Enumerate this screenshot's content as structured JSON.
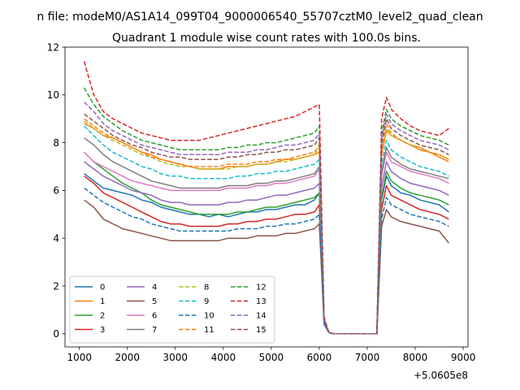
{
  "figure": {
    "suptitle": "n file: modeM0/AS1A14_099T04_9000006540_55707cztM0_level2_quad_clean",
    "title": "Quadrant 1 module wise count rates with 100.0s bins.",
    "offset_label": "+5.0605e8"
  },
  "chart_data": {
    "type": "line",
    "title": "Quadrant 1 module wise count rates with 100.0s bins.",
    "xlabel": "",
    "ylabel": "",
    "x_offset": 506050000,
    "xlim": [
      700,
      9100
    ],
    "ylim": [
      -0.55,
      12
    ],
    "xticks": [
      1000,
      2000,
      3000,
      4000,
      5000,
      6000,
      7000,
      8000,
      9000
    ],
    "yticks": [
      0,
      2,
      4,
      6,
      8,
      10,
      12
    ],
    "grid": false,
    "legend_position": "lower-left",
    "legend_columns": 4,
    "gap_range": [
      6200,
      7200
    ],
    "x": [
      1100,
      1300,
      1500,
      1700,
      1900,
      2100,
      2300,
      2500,
      2700,
      2900,
      3100,
      3300,
      3500,
      3700,
      3900,
      4100,
      4300,
      4500,
      4700,
      4900,
      5100,
      5300,
      5500,
      5700,
      5900,
      6000,
      6100,
      6200,
      6300,
      6400,
      6500,
      6600,
      6700,
      6800,
      6900,
      7000,
      7100,
      7200,
      7300,
      7400,
      7500,
      7700,
      7900,
      8100,
      8300,
      8500,
      8700
    ],
    "series": [
      {
        "name": "0",
        "color": "#1f77b4",
        "dash": "solid",
        "values": [
          6.7,
          6.4,
          6.1,
          6.0,
          5.9,
          5.8,
          5.6,
          5.5,
          5.3,
          5.2,
          5.1,
          5.0,
          5.0,
          4.9,
          5.0,
          4.9,
          5.0,
          5.1,
          5.1,
          5.2,
          5.2,
          5.3,
          5.4,
          5.4,
          5.6,
          5.9,
          0.5,
          0.05,
          0,
          0,
          0,
          0,
          0,
          0,
          0,
          0,
          0,
          0,
          5.6,
          6.6,
          6.2,
          5.9,
          5.8,
          5.6,
          5.5,
          5.4,
          5.1
        ]
      },
      {
        "name": "1",
        "color": "#ff7f0e",
        "dash": "solid",
        "values": [
          8.8,
          8.6,
          8.3,
          8.2,
          8.0,
          7.8,
          7.6,
          7.5,
          7.3,
          7.2,
          7.1,
          7.0,
          6.9,
          6.9,
          6.9,
          7.0,
          7.0,
          7.0,
          7.1,
          7.1,
          7.2,
          7.3,
          7.3,
          7.4,
          7.5,
          7.6,
          0.6,
          0.05,
          0,
          0,
          0,
          0,
          0,
          0,
          0,
          0,
          0,
          0,
          7.5,
          8.5,
          8.3,
          8.1,
          7.9,
          7.7,
          7.6,
          7.4,
          7.2
        ]
      },
      {
        "name": "2",
        "color": "#2ca02c",
        "dash": "solid",
        "values": [
          7.6,
          7.2,
          6.9,
          6.6,
          6.3,
          6.1,
          5.9,
          5.6,
          5.4,
          5.3,
          5.2,
          5.1,
          5.0,
          5.0,
          5.0,
          5.0,
          5.1,
          5.1,
          5.2,
          5.3,
          5.3,
          5.4,
          5.5,
          5.6,
          5.7,
          5.9,
          0.5,
          0.05,
          0,
          0,
          0,
          0,
          0,
          0,
          0,
          0,
          0,
          0,
          5.7,
          6.8,
          6.4,
          6.1,
          5.9,
          5.8,
          5.7,
          5.6,
          5.4
        ]
      },
      {
        "name": "3",
        "color": "#d62728",
        "dash": "solid",
        "values": [
          6.6,
          6.3,
          5.9,
          5.7,
          5.5,
          5.3,
          5.1,
          4.9,
          4.7,
          4.6,
          4.6,
          4.5,
          4.5,
          4.5,
          4.5,
          4.6,
          4.6,
          4.7,
          4.7,
          4.8,
          4.8,
          4.9,
          5.0,
          5.0,
          5.1,
          5.4,
          0.4,
          0.05,
          0,
          0,
          0,
          0,
          0,
          0,
          0,
          0,
          0,
          0,
          5.2,
          6.2,
          5.8,
          5.6,
          5.4,
          5.2,
          5.1,
          5.0,
          4.8
        ]
      },
      {
        "name": "4",
        "color": "#9467bd",
        "dash": "solid",
        "values": [
          7.2,
          6.9,
          6.6,
          6.4,
          6.2,
          6.0,
          5.9,
          5.8,
          5.6,
          5.5,
          5.5,
          5.4,
          5.4,
          5.4,
          5.4,
          5.5,
          5.5,
          5.6,
          5.6,
          5.7,
          5.8,
          5.8,
          5.9,
          6.0,
          6.1,
          6.3,
          0.5,
          0.05,
          0,
          0,
          0,
          0,
          0,
          0,
          0,
          0,
          0,
          0,
          6.1,
          7.2,
          6.8,
          6.5,
          6.3,
          6.2,
          6.1,
          6.0,
          5.8
        ]
      },
      {
        "name": "5",
        "color": "#8c564b",
        "dash": "solid",
        "values": [
          5.6,
          5.3,
          4.8,
          4.6,
          4.4,
          4.3,
          4.2,
          4.1,
          4.0,
          3.9,
          3.9,
          3.9,
          3.9,
          3.9,
          3.9,
          4.0,
          4.0,
          4.0,
          4.1,
          4.1,
          4.1,
          4.2,
          4.2,
          4.3,
          4.4,
          4.6,
          0.4,
          0.05,
          0,
          0,
          0,
          0,
          0,
          0,
          0,
          0,
          0,
          0,
          4.5,
          5.2,
          4.9,
          4.7,
          4.6,
          4.5,
          4.4,
          4.3,
          3.8
        ]
      },
      {
        "name": "6",
        "color": "#e377c2",
        "dash": "solid",
        "values": [
          7.6,
          7.2,
          7.0,
          6.8,
          6.6,
          6.4,
          6.3,
          6.2,
          6.1,
          6.0,
          6.0,
          6.0,
          6.0,
          6.0,
          6.0,
          6.1,
          6.1,
          6.1,
          6.2,
          6.2,
          6.3,
          6.3,
          6.4,
          6.5,
          6.6,
          6.9,
          0.5,
          0.05,
          0,
          0,
          0,
          0,
          0,
          0,
          0,
          0,
          0,
          0,
          6.6,
          7.6,
          7.2,
          7.0,
          6.8,
          6.7,
          6.6,
          6.5,
          6.3
        ]
      },
      {
        "name": "7",
        "color": "#7f7f7f",
        "dash": "solid",
        "values": [
          8.2,
          7.9,
          7.5,
          7.2,
          7.0,
          6.8,
          6.6,
          6.4,
          6.3,
          6.2,
          6.1,
          6.1,
          6.1,
          6.1,
          6.1,
          6.2,
          6.2,
          6.2,
          6.3,
          6.3,
          6.4,
          6.4,
          6.5,
          6.6,
          6.7,
          7.0,
          0.5,
          0.05,
          0,
          0,
          0,
          0,
          0,
          0,
          0,
          0,
          0,
          0,
          6.8,
          7.8,
          7.4,
          7.1,
          6.9,
          6.8,
          6.7,
          6.6,
          6.5
        ]
      },
      {
        "name": "8",
        "color": "#bcbd22",
        "dash": "dashed",
        "values": [
          8.9,
          8.6,
          8.3,
          8.1,
          7.9,
          7.7,
          7.5,
          7.4,
          7.2,
          7.1,
          7.0,
          7.0,
          6.9,
          6.9,
          6.9,
          6.9,
          7.0,
          7.0,
          7.1,
          7.1,
          7.2,
          7.2,
          7.3,
          7.4,
          7.5,
          7.8,
          0.6,
          0.05,
          0,
          0,
          0,
          0,
          0,
          0,
          0,
          0,
          0,
          0,
          7.6,
          8.6,
          8.3,
          8.1,
          7.9,
          7.8,
          7.6,
          7.5,
          7.3
        ]
      },
      {
        "name": "9",
        "color": "#17becf",
        "dash": "dashed",
        "values": [
          8.7,
          8.3,
          7.9,
          7.6,
          7.4,
          7.2,
          7.0,
          6.9,
          6.7,
          6.6,
          6.6,
          6.5,
          6.5,
          6.5,
          6.5,
          6.5,
          6.6,
          6.6,
          6.7,
          6.7,
          6.8,
          6.8,
          6.9,
          7.0,
          7.1,
          7.3,
          0.5,
          0.05,
          0,
          0,
          0,
          0,
          0,
          0,
          0,
          0,
          0,
          0,
          7.1,
          8.1,
          7.7,
          7.4,
          7.2,
          7.0,
          6.9,
          6.8,
          6.6
        ]
      },
      {
        "name": "10",
        "color": "#1f77b4",
        "dash": "dashed",
        "values": [
          6.1,
          5.8,
          5.5,
          5.3,
          5.1,
          4.9,
          4.8,
          4.6,
          4.5,
          4.4,
          4.3,
          4.3,
          4.3,
          4.3,
          4.3,
          4.3,
          4.4,
          4.4,
          4.4,
          4.5,
          4.5,
          4.6,
          4.6,
          4.7,
          4.8,
          5.0,
          0.4,
          0.05,
          0,
          0,
          0,
          0,
          0,
          0,
          0,
          0,
          0,
          0,
          4.8,
          5.7,
          5.4,
          5.2,
          5.0,
          4.9,
          4.8,
          4.7,
          4.5
        ]
      },
      {
        "name": "11",
        "color": "#ff7f0e",
        "dash": "dashed",
        "values": [
          9.0,
          8.7,
          8.4,
          8.2,
          8.0,
          7.8,
          7.6,
          7.4,
          7.3,
          7.2,
          7.1,
          7.0,
          7.0,
          7.0,
          7.0,
          7.1,
          7.1,
          7.1,
          7.2,
          7.2,
          7.3,
          7.3,
          7.4,
          7.5,
          7.6,
          7.9,
          0.6,
          0.05,
          0,
          0,
          0,
          0,
          0,
          0,
          0,
          0,
          0,
          0,
          7.7,
          8.8,
          8.4,
          8.1,
          7.9,
          7.8,
          7.6,
          7.5,
          7.3
        ]
      },
      {
        "name": "12",
        "color": "#2ca02c",
        "dash": "dashed",
        "values": [
          10.3,
          9.6,
          9.1,
          8.8,
          8.5,
          8.3,
          8.1,
          8.0,
          7.9,
          7.8,
          7.7,
          7.7,
          7.7,
          7.7,
          7.7,
          7.8,
          7.8,
          7.9,
          7.9,
          8.0,
          8.0,
          8.1,
          8.2,
          8.3,
          8.4,
          8.7,
          0.6,
          0.05,
          0,
          0,
          0,
          0,
          0,
          0,
          0,
          0,
          0,
          0,
          8.4,
          9.4,
          9.0,
          8.7,
          8.5,
          8.3,
          8.2,
          8.1,
          7.9
        ]
      },
      {
        "name": "13",
        "color": "#d62728",
        "dash": "dashed",
        "values": [
          11.4,
          10.0,
          9.3,
          9.0,
          8.8,
          8.6,
          8.4,
          8.3,
          8.2,
          8.1,
          8.1,
          8.1,
          8.1,
          8.2,
          8.3,
          8.4,
          8.5,
          8.6,
          8.7,
          8.8,
          8.9,
          9.0,
          9.1,
          9.3,
          9.5,
          9.6,
          0.7,
          0.05,
          0,
          0,
          0,
          0,
          0,
          0,
          0,
          0,
          0,
          0,
          9.0,
          9.9,
          9.4,
          9.0,
          8.7,
          8.5,
          8.4,
          8.3,
          8.6
        ]
      },
      {
        "name": "14",
        "color": "#9467bd",
        "dash": "dashed",
        "values": [
          9.7,
          9.3,
          8.8,
          8.5,
          8.3,
          8.1,
          7.9,
          7.8,
          7.7,
          7.6,
          7.5,
          7.5,
          7.5,
          7.5,
          7.5,
          7.6,
          7.6,
          7.6,
          7.7,
          7.7,
          7.8,
          7.9,
          7.9,
          8.0,
          8.1,
          8.4,
          0.6,
          0.05,
          0,
          0,
          0,
          0,
          0,
          0,
          0,
          0,
          0,
          0,
          8.2,
          9.2,
          8.8,
          8.5,
          8.3,
          8.1,
          8.0,
          7.9,
          7.7
        ]
      },
      {
        "name": "15",
        "color": "#8c564b",
        "dash": "dashed",
        "values": [
          9.2,
          8.9,
          8.6,
          8.3,
          8.1,
          7.9,
          7.8,
          7.6,
          7.5,
          7.4,
          7.4,
          7.3,
          7.3,
          7.3,
          7.3,
          7.4,
          7.4,
          7.5,
          7.5,
          7.6,
          7.6,
          7.7,
          7.7,
          7.8,
          7.9,
          8.2,
          0.6,
          0.05,
          0,
          0,
          0,
          0,
          0,
          0,
          0,
          0,
          0,
          0,
          8.0,
          9.0,
          8.6,
          8.3,
          8.1,
          7.9,
          7.8,
          7.7,
          7.5
        ]
      }
    ]
  }
}
